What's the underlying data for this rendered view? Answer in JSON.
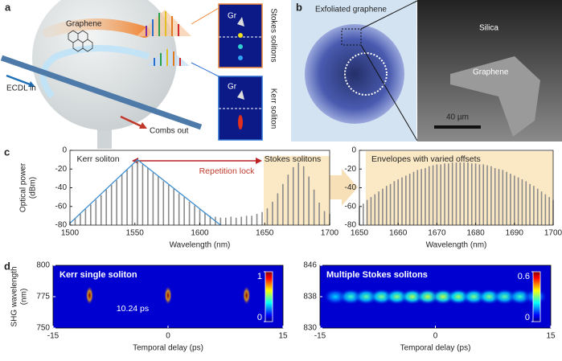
{
  "panels": {
    "a": {
      "label": "a",
      "graphene": "Graphene",
      "gr_top": "Gr",
      "gr_bottom": "Gr",
      "stokes": "Stokes solitons",
      "kerr": "Kerr soliton",
      "ecdl": "ECDL in",
      "combs": "Combs out"
    },
    "b": {
      "label": "b",
      "exfoliated": "Exfoliated graphene",
      "silica": "Silica",
      "graphene": "Graphene",
      "scale": "40 µm"
    },
    "c": {
      "label": "c"
    },
    "d": {
      "label": "d"
    }
  },
  "chart_data": [
    {
      "type": "stem",
      "xlabel": "Wavelength (nm)",
      "ylabel": [
        "Optical power",
        "(dBm)"
      ],
      "xlim": [
        1500,
        1700
      ],
      "xticks": [
        1500,
        1550,
        1600,
        1650,
        1700
      ],
      "ylim": [
        -80,
        0
      ],
      "yticks": [
        0,
        -20,
        -40,
        -60,
        -80
      ],
      "annotations": [
        "Kerr soliton",
        "Repetition lock",
        "Stokes solitons"
      ],
      "series": [
        {
          "color": "#8a8a8a",
          "x": [
            1500,
            1504,
            1508,
            1512,
            1516,
            1520,
            1524,
            1528,
            1532,
            1536,
            1540,
            1544,
            1548,
            1552,
            1556,
            1560,
            1564,
            1568,
            1572,
            1576,
            1580,
            1584,
            1588,
            1592,
            1596,
            1600,
            1604,
            1608,
            1612,
            1616,
            1620,
            1624,
            1628,
            1632,
            1636,
            1640,
            1644,
            1648,
            1652,
            1656,
            1660,
            1664,
            1668,
            1672,
            1676,
            1680,
            1684,
            1688,
            1692,
            1696,
            1700
          ],
          "values": [
            -76,
            -73,
            -68,
            -63,
            -58,
            -53,
            -48,
            -42,
            -37,
            -32,
            -26,
            -21,
            -16,
            -10,
            -15,
            -19,
            -24,
            -28,
            -33,
            -37,
            -41,
            -46,
            -50,
            -55,
            -59,
            -63,
            -67,
            -70,
            -71,
            -72,
            -72,
            -71,
            -72,
            -71,
            -70,
            -70,
            -68,
            -66,
            -62,
            -55,
            -46,
            -36,
            -26,
            -18,
            -13,
            -17,
            -28,
            -42,
            -56,
            -65,
            -68
          ]
        },
        {
          "color": "#3f8fd0",
          "style": "line",
          "x": [
            1500,
            1552,
            1616
          ],
          "values": [
            -78,
            -10,
            -80
          ]
        }
      ]
    },
    {
      "type": "stem",
      "xlabel": "Wavelength (nm)",
      "xlim": [
        1650,
        1700
      ],
      "xticks": [
        1650,
        1660,
        1670,
        1680,
        1690,
        1700
      ],
      "ylim": [
        -80,
        0
      ],
      "yticks": [
        0,
        -20,
        -40,
        -60,
        -80
      ],
      "annotations": [
        "Envelopes with varied offsets"
      ],
      "series": [
        {
          "color": "#8a8a8a",
          "x": [
            1650,
            1651,
            1652,
            1653,
            1654,
            1655,
            1656,
            1657,
            1658,
            1659,
            1660,
            1661,
            1662,
            1663,
            1664,
            1665,
            1666,
            1667,
            1668,
            1669,
            1670,
            1671,
            1672,
            1673,
            1674,
            1675,
            1676,
            1677,
            1678,
            1679,
            1680,
            1681,
            1682,
            1683,
            1684,
            1685,
            1686,
            1687,
            1688,
            1689,
            1690,
            1691,
            1692,
            1693,
            1694,
            1695,
            1696,
            1697,
            1698,
            1699,
            1700
          ],
          "values": [
            -60,
            -57,
            -53,
            -50,
            -47,
            -44,
            -41,
            -38,
            -36,
            -33,
            -31,
            -29,
            -27,
            -25,
            -23,
            -21,
            -20,
            -19,
            -17,
            -16,
            -15,
            -15,
            -14,
            -14,
            -13,
            -13,
            -13,
            -13,
            -13,
            -14,
            -14,
            -15,
            -15,
            -16,
            -17,
            -19,
            -20,
            -21,
            -23,
            -25,
            -27,
            -29,
            -31,
            -33,
            -36,
            -38,
            -41,
            -44,
            -47,
            -50,
            -53
          ]
        }
      ]
    },
    {
      "type": "heatmap",
      "title": "Kerr single soliton",
      "xlabel": "Temporal delay (ps)",
      "ylabel": [
        "SHG wavelength",
        "(nm)"
      ],
      "xlim": [
        -15,
        15
      ],
      "xticks": [
        -15,
        0,
        15
      ],
      "ylim": [
        750,
        800
      ],
      "yticks": [
        750,
        775,
        800
      ],
      "clim": [
        0,
        1
      ],
      "cticks": [
        0,
        1
      ],
      "annotations": [
        "10.24 ps"
      ],
      "spots": {
        "x": [
          -10.24,
          0,
          10.24
        ],
        "y": [
          776,
          776,
          776
        ],
        "values": [
          1,
          1,
          1
        ]
      }
    },
    {
      "type": "heatmap",
      "title": "Multiple Stokes solitons",
      "xlabel": "Temporal delay (ps)",
      "xlim": [
        -15,
        15
      ],
      "xticks": [
        -15,
        0,
        15
      ],
      "ylim": [
        830,
        846
      ],
      "yticks": [
        830,
        838,
        846
      ],
      "clim": [
        0,
        0.6
      ],
      "cticks": [
        0,
        0.6
      ],
      "annotations": [],
      "spots": {
        "x": [
          -13,
          -11,
          -9,
          -7,
          -5,
          -3,
          -1,
          1,
          3,
          5,
          7,
          9,
          11,
          13
        ],
        "y": [
          838,
          838,
          838,
          838,
          838,
          838,
          838,
          838,
          838,
          838,
          838,
          838,
          838,
          838
        ],
        "values": [
          0.2,
          0.26,
          0.28,
          0.3,
          0.31,
          0.33,
          0.34,
          0.34,
          0.32,
          0.3,
          0.3,
          0.28,
          0.26,
          0.2
        ]
      }
    }
  ]
}
